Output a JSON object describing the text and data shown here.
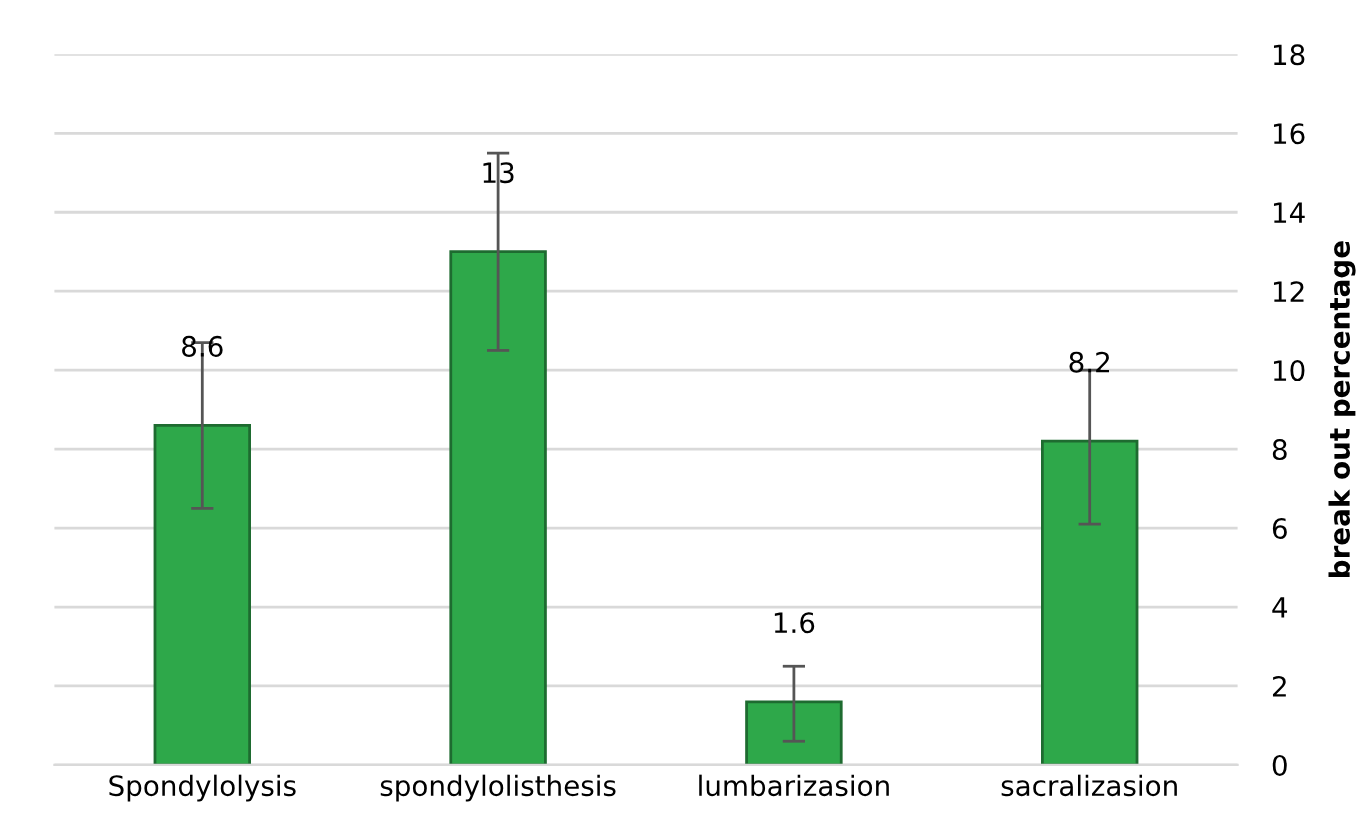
{
  "chart_data": {
    "type": "bar",
    "categories": [
      "Spondylolysis",
      "spondylolisthesis",
      "lumbarizasion",
      "sacralizasion"
    ],
    "values": [
      8.6,
      13,
      1.6,
      8.2
    ],
    "errors": [
      [
        6.5,
        10.7
      ],
      [
        10.5,
        15.5
      ],
      [
        0.6,
        2.5
      ],
      [
        6.1,
        10.0
      ]
    ],
    "color": "#2ea84a",
    "data_labels": true,
    "ylabel": "break out percentage",
    "ylim": [
      0,
      18
    ],
    "yticks": [
      0,
      2,
      4,
      6,
      8,
      10,
      12,
      14,
      16,
      18
    ],
    "grid": "y"
  }
}
